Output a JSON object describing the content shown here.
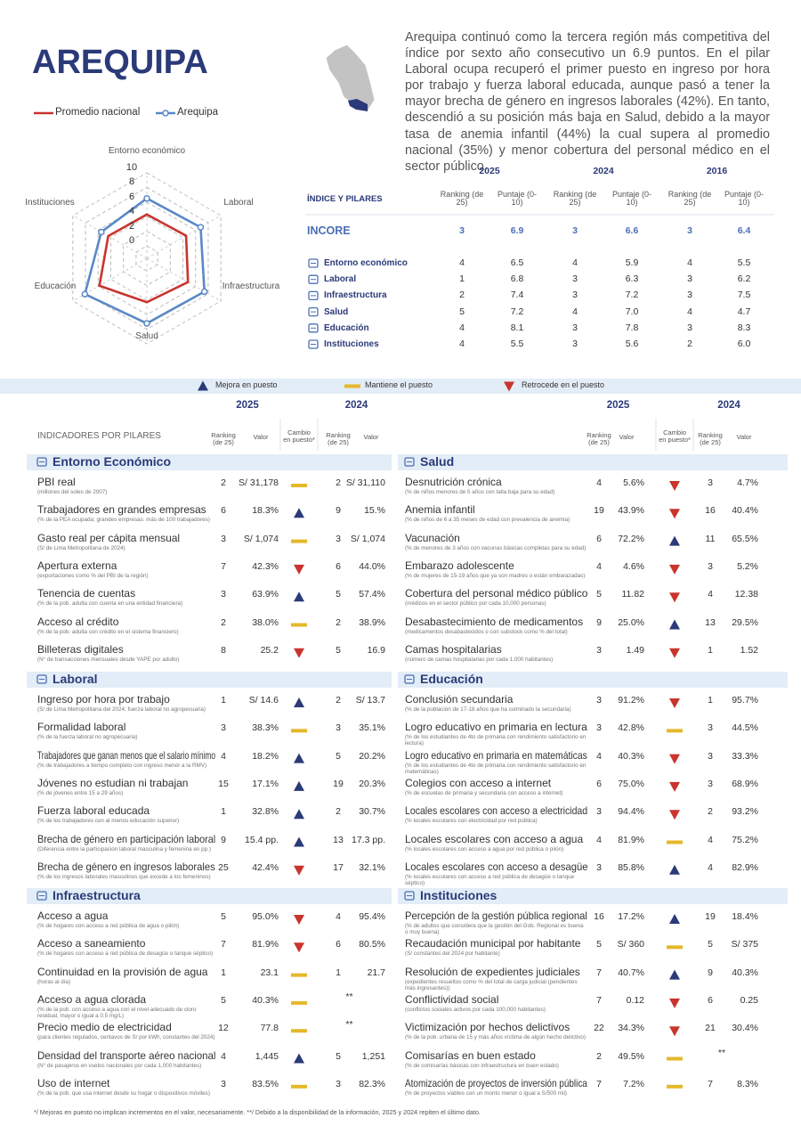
{
  "header": {
    "title": "AREQUIPA",
    "text": "Arequipa continuó como la tercera región más competitiva del índice por sexto año consecutivo un 6.9 puntos. En el pilar Laboral ocupa recuperó el primer puesto en ingreso por hora por trabajo y fuerza laboral educada, aunque pasó a tener la mayor brecha de género en ingresos laborales (42%). En tanto, descendió a su posición más baja en Salud, debido a la mayor tasa de anemia infantil (44%) la cual supera al promedio nacional (35%) y menor cobertura del personal médico en el sector público."
  },
  "chart_data": {
    "type": "radar",
    "axes": [
      "Entorno económico",
      "Laboral",
      "Infraestructura",
      "Salud",
      "Educación",
      "Instituciones"
    ],
    "series": [
      {
        "name": "Promedio nacional",
        "color": "#c9342d",
        "values": [
          4.3,
          4.5,
          4.8,
          4.3,
          5.8,
          4.4
        ]
      },
      {
        "name": "Arequipa",
        "color": "#5b88c6",
        "values": [
          6.5,
          6.8,
          7.4,
          7.2,
          8.1,
          5.5
        ]
      }
    ],
    "rlim": [
      0,
      10
    ],
    "rticks": [
      0,
      2,
      4,
      6,
      8,
      10
    ],
    "grid": true
  },
  "summary": {
    "label": "ÍNDICE Y PILARES",
    "years": [
      "2025",
      "2024",
      "2016"
    ],
    "columns": [
      "Ranking (de 25)",
      "Puntaje (0-10)"
    ],
    "rows": [
      {
        "name": "INCORE",
        "values": [
          3,
          "6.9",
          3,
          "6.6",
          3,
          "6.4"
        ]
      },
      {
        "name": "Entorno económico",
        "values": [
          4,
          "6.5",
          4,
          "5.9",
          4,
          "5.5"
        ]
      },
      {
        "name": "Laboral",
        "values": [
          1,
          "6.8",
          3,
          "6.3",
          3,
          "6.2"
        ]
      },
      {
        "name": "Infraestructura",
        "values": [
          2,
          "7.4",
          3,
          "7.2",
          3,
          "7.5"
        ]
      },
      {
        "name": "Salud",
        "values": [
          5,
          "7.2",
          4,
          "7.0",
          4,
          "4.7"
        ]
      },
      {
        "name": "Educación",
        "values": [
          4,
          "8.1",
          3,
          "7.8",
          3,
          "8.3"
        ]
      },
      {
        "name": "Instituciones",
        "values": [
          4,
          "5.5",
          3,
          "5.6",
          2,
          "6.0"
        ]
      }
    ]
  },
  "legend": [
    {
      "change": "up",
      "label": "Mejora en puesto"
    },
    {
      "change": "eq",
      "label": "Mantiene el puesto"
    },
    {
      "change": "down",
      "label": "Retrocede en el puesto"
    }
  ],
  "indicators": {
    "label": "INDICADORES POR PILARES",
    "years": [
      "2025",
      "2024"
    ],
    "columns": {
      "ranking": "Ranking (de 25)",
      "valor": "Valor",
      "cambio": "Cambio en puesto*"
    },
    "sections": [
      {
        "name": "Entorno Económico",
        "rows": [
          {
            "name": "PBI real",
            "note": "(millones del soles de 2007)",
            "r2025": 2,
            "v2025": "S/ 31,178",
            "change": "eq",
            "r2024": 2,
            "v2024": "S/ 31,110"
          },
          {
            "name": "Trabajadores en grandes empresas",
            "note": "(% de la PEA ocupada; grandes empresas: más de 100 trabajadores)",
            "r2025": 6,
            "v2025": "18.3%",
            "change": "up",
            "r2024": 9,
            "v2024": "15.%"
          },
          {
            "name": "Gasto real per cápita mensual",
            "note": "(S/ de Lima Metropolitana de 2024)",
            "r2025": 3,
            "v2025": "S/ 1,074",
            "change": "eq",
            "r2024": 3,
            "v2024": "S/ 1,074"
          },
          {
            "name": "Apertura externa",
            "note": "(exportaciones como % del PBI de la región)",
            "r2025": 7,
            "v2025": "42.3%",
            "change": "down",
            "r2024": 6,
            "v2024": "44.0%"
          },
          {
            "name": "Tenencia de cuentas",
            "note": "(% de la pob. adulta con cuenta en una entidad financiera)",
            "r2025": 3,
            "v2025": "63.9%",
            "change": "up",
            "r2024": 5,
            "v2024": "57.4%"
          },
          {
            "name": "Acceso al crédito",
            "note": "(% de la pob. adulta con crédito en el sistema financiero)",
            "r2025": 2,
            "v2025": "38.0%",
            "change": "eq",
            "r2024": 2,
            "v2024": "38.9%"
          },
          {
            "name": "Billeteras digitales",
            "note": "(N° de transacciones mensuales desde YAPE por adulto)",
            "r2025": 8,
            "v2025": "25.2",
            "change": "down",
            "r2024": 5,
            "v2024": "16.9"
          }
        ]
      },
      {
        "name": "Laboral",
        "rows": [
          {
            "name": "Ingreso por hora por trabajo",
            "note": "(S/ de Lima Metropolitana del 2024; fuerza laboral no agropecuaria)",
            "r2025": 1,
            "v2025": "S/ 14.6",
            "change": "up",
            "r2024": 2,
            "v2024": "S/ 13.7"
          },
          {
            "name": "Formalidad laboral",
            "note": "(% de la fuerza laboral no agropecuaria)",
            "r2025": 3,
            "v2025": "38.3%",
            "change": "eq",
            "r2024": 3,
            "v2024": "35.1%"
          },
          {
            "name": "Trabajadores que ganan menos que el salario mínimo",
            "note": "(% de trabajadores a tiempo completo con ingreso menor a la RMV)",
            "r2025": 4,
            "v2025": "18.2%",
            "change": "up",
            "r2024": 5,
            "v2024": "20.2%"
          },
          {
            "name": "Jóvenes no estudian ni trabajan",
            "note": "(% de jóvenes entre 15 a 29 años)",
            "r2025": 15,
            "v2025": "17.1%",
            "change": "up",
            "r2024": 19,
            "v2024": "20.3%"
          },
          {
            "name": "Fuerza laboral educada",
            "note": "(% de los trabajadores con al menos educación superior)",
            "r2025": 1,
            "v2025": "32.8%",
            "change": "up",
            "r2024": 2,
            "v2024": "30.7%"
          },
          {
            "name": "Brecha de género en participación laboral",
            "note": "(Diferencia entre la participación laboral masculina y femenina en pp.)",
            "r2025": 9,
            "v2025": "15.4 pp.",
            "change": "up",
            "r2024": 13,
            "v2024": "17.3 pp."
          },
          {
            "name": "Brecha de género en ingresos laborales",
            "note": "(% de los ingresos laborales masculinos que excede a los femeninos)",
            "r2025": 25,
            "v2025": "42.4%",
            "change": "down",
            "r2024": 17,
            "v2024": "32.1%"
          }
        ]
      },
      {
        "name": "Infraestructura",
        "rows": [
          {
            "name": "Acceso a agua",
            "note": "(% de hogares con acceso a red pública de agua o pilón)",
            "r2025": 5,
            "v2025": "95.0%",
            "change": "down",
            "r2024": 4,
            "v2024": "95.4%"
          },
          {
            "name": "Acceso a saneamiento",
            "note": "(% de hogares con acceso a red pública de desagüe o tanque séptico)",
            "r2025": 7,
            "v2025": "81.9%",
            "change": "down",
            "r2024": 6,
            "v2024": "80.5%"
          },
          {
            "name": "Continuidad en la provisión de agua",
            "note": "(horas al día)",
            "r2025": 1,
            "v2025": "23.1",
            "change": "eq",
            "r2024": 1,
            "v2024": "21.7"
          },
          {
            "name": "Acceso a agua clorada",
            "note": "(% de la pob. con acceso a agua con el nivel adecuado de cloro residual, mayor o igual a 0.5 mg/L)",
            "r2025": 5,
            "v2025": "40.3%",
            "change": "eq",
            "r2024": null,
            "v2024": "**"
          },
          {
            "name": "Precio medio de electricidad",
            "note": "(para clientes regulados, centavos de S/ por kWh, constantes del 2024)",
            "r2025": 12,
            "v2025": "77.8",
            "change": "eq",
            "r2024": null,
            "v2024": "**"
          },
          {
            "name": "Densidad del transporte aéreo nacional",
            "note": "(N° de pasajeros en vuelos nacionales por cada 1,000 habitantes)",
            "r2025": 4,
            "v2025": "1,445",
            "change": "up",
            "r2024": 5,
            "v2024": "1,251"
          },
          {
            "name": "Uso de internet",
            "note": "(% de la pob. que usa internet desde su hogar o dispositivos móviles)",
            "r2025": 3,
            "v2025": "83.5%",
            "change": "eq",
            "r2024": 3,
            "v2024": "82.3%"
          }
        ]
      },
      {
        "name": "Salud",
        "rows": [
          {
            "name": "Desnutrición crónica",
            "note": "(% de niños menores de 5 años con talla baja para su edad)",
            "r2025": 4,
            "v2025": "5.6%",
            "change": "down",
            "r2024": 3,
            "v2024": "4.7%"
          },
          {
            "name": "Anemia infantil",
            "note": "(% de niños de 6 a 35 meses de edad con prevalencia de anemia)",
            "r2025": 19,
            "v2025": "43.9%",
            "change": "down",
            "r2024": 16,
            "v2024": "40.4%"
          },
          {
            "name": "Vacunación",
            "note": "(% de menores de 3 años con vacunas básicas completas para su edad)",
            "r2025": 6,
            "v2025": "72.2%",
            "change": "up",
            "r2024": 11,
            "v2024": "65.5%"
          },
          {
            "name": "Embarazo adolescente",
            "note": "(% de mujeres de 15-19 años que ya son madres o están embarazadas)",
            "r2025": 4,
            "v2025": "4.6%",
            "change": "down",
            "r2024": 3,
            "v2024": "5.2%"
          },
          {
            "name": "Cobertura del personal médico público",
            "note": "(médicos en el sector público por cada 10,000 personas)",
            "r2025": 5,
            "v2025": "11.82",
            "change": "down",
            "r2024": 4,
            "v2024": "12.38"
          },
          {
            "name": "Desabastecimiento de medicamentos",
            "note": "(medicamentos desabastecidos o con substock como % del total)",
            "r2025": 9,
            "v2025": "25.0%",
            "change": "up",
            "r2024": 13,
            "v2024": "29.5%"
          },
          {
            "name": "Camas hospitalarias",
            "note": "(número de camas hospitalarias por cada 1,000 habitantes)",
            "r2025": 3,
            "v2025": "1.49",
            "change": "down",
            "r2024": 1,
            "v2024": "1.52"
          }
        ]
      },
      {
        "name": "Educación",
        "rows": [
          {
            "name": "Conclusión secundaria",
            "note": "(% de la población de 17-18 años que ha culminado la secundaria)",
            "r2025": 3,
            "v2025": "91.2%",
            "change": "down",
            "r2024": 1,
            "v2024": "95.7%"
          },
          {
            "name": "Logro educativo en primaria en lectura",
            "note": "(% de los estudiantes de 4to de primaria con rendimiento satisfactorio en lectura)",
            "r2025": 3,
            "v2025": "42.8%",
            "change": "eq",
            "r2024": 3,
            "v2024": "44.5%"
          },
          {
            "name": "Logro educativo en primaria en matemáticas",
            "note": "(% de los estudiantes de 4to de primaria con rendimiento satisfactorio en matemáticas)",
            "r2025": 4,
            "v2025": "40.3%",
            "change": "down",
            "r2024": 3,
            "v2024": "33.3%"
          },
          {
            "name": "Colegios con acceso a internet",
            "note": "(% de escuelas de primaria y secundaria con acceso a internet)",
            "r2025": 6,
            "v2025": "75.0%",
            "change": "down",
            "r2024": 3,
            "v2024": "68.9%"
          },
          {
            "name": "Locales escolares con acceso a electricidad",
            "note": "(% locales escolares con electricidad por red pública)",
            "r2025": 3,
            "v2025": "94.4%",
            "change": "down",
            "r2024": 2,
            "v2024": "93.2%"
          },
          {
            "name": "Locales escolares con acceso a agua",
            "note": "(% locales escolares con acceso a agua por red pública o pilón)",
            "r2025": 4,
            "v2025": "81.9%",
            "change": "eq",
            "r2024": 4,
            "v2024": "75.2%"
          },
          {
            "name": "Locales escolares con acceso a desagüe",
            "note": "(% locales escolares con acceso a red pública de desagüe o tanque séptico)",
            "r2025": 3,
            "v2025": "85.8%",
            "change": "up",
            "r2024": 4,
            "v2024": "82.9%"
          }
        ]
      },
      {
        "name": "Instituciones",
        "rows": [
          {
            "name": "Percepción de la gestión pública regional",
            "note": "(% de adultos que considera que la gestión del Gob. Regional es buena o muy buena)",
            "r2025": 16,
            "v2025": "17.2%",
            "change": "up",
            "r2024": 19,
            "v2024": "18.4%"
          },
          {
            "name": "Recaudación municipal por habitante",
            "note": "(S/ constantes del 2024 por habitante)",
            "r2025": 5,
            "v2025": "S/ 360",
            "change": "eq",
            "r2024": 5,
            "v2024": "S/ 375"
          },
          {
            "name": "Resolución de expedientes judiciales",
            "note": "(expedientes resueltos como % del total de carga judicial (pendientes más ingresantes))",
            "r2025": 7,
            "v2025": "40.7%",
            "change": "up",
            "r2024": 9,
            "v2024": "40.3%"
          },
          {
            "name": "Conflictividad social",
            "note": "(conflictos sociales activos por cada 100,000 habitantes)",
            "r2025": 7,
            "v2025": "0.12",
            "change": "down",
            "r2024": 6,
            "v2024": "0.25"
          },
          {
            "name": "Victimización por hechos delictivos",
            "note": "(% de la pob. urbana de 15 y más años víctima de algún hecho delictivo)",
            "r2025": 22,
            "v2025": "34.3%",
            "change": "down",
            "r2024": 21,
            "v2024": "30.4%"
          },
          {
            "name": "Comisarías en buen estado",
            "note": "(% de comisarías básicas con infraestructura en buen estado)",
            "r2025": 2,
            "v2025": "49.5%",
            "change": "eq",
            "r2024": null,
            "v2024": "**"
          },
          {
            "name": "Atomización de proyectos de inversión pública",
            "note": "(% de proyectos viables con un monto menor o igual a S/500 mil)",
            "r2025": 7,
            "v2025": "7.2%",
            "change": "eq",
            "r2024": 7,
            "v2024": "8.3%"
          }
        ]
      }
    ]
  },
  "footnote": "*/ Mejoras en puesto no implican incrementos en el valor, necesariamente. **/ Debido a la disponibilidad de la información, 2025 y 2024 repiten el último dato."
}
